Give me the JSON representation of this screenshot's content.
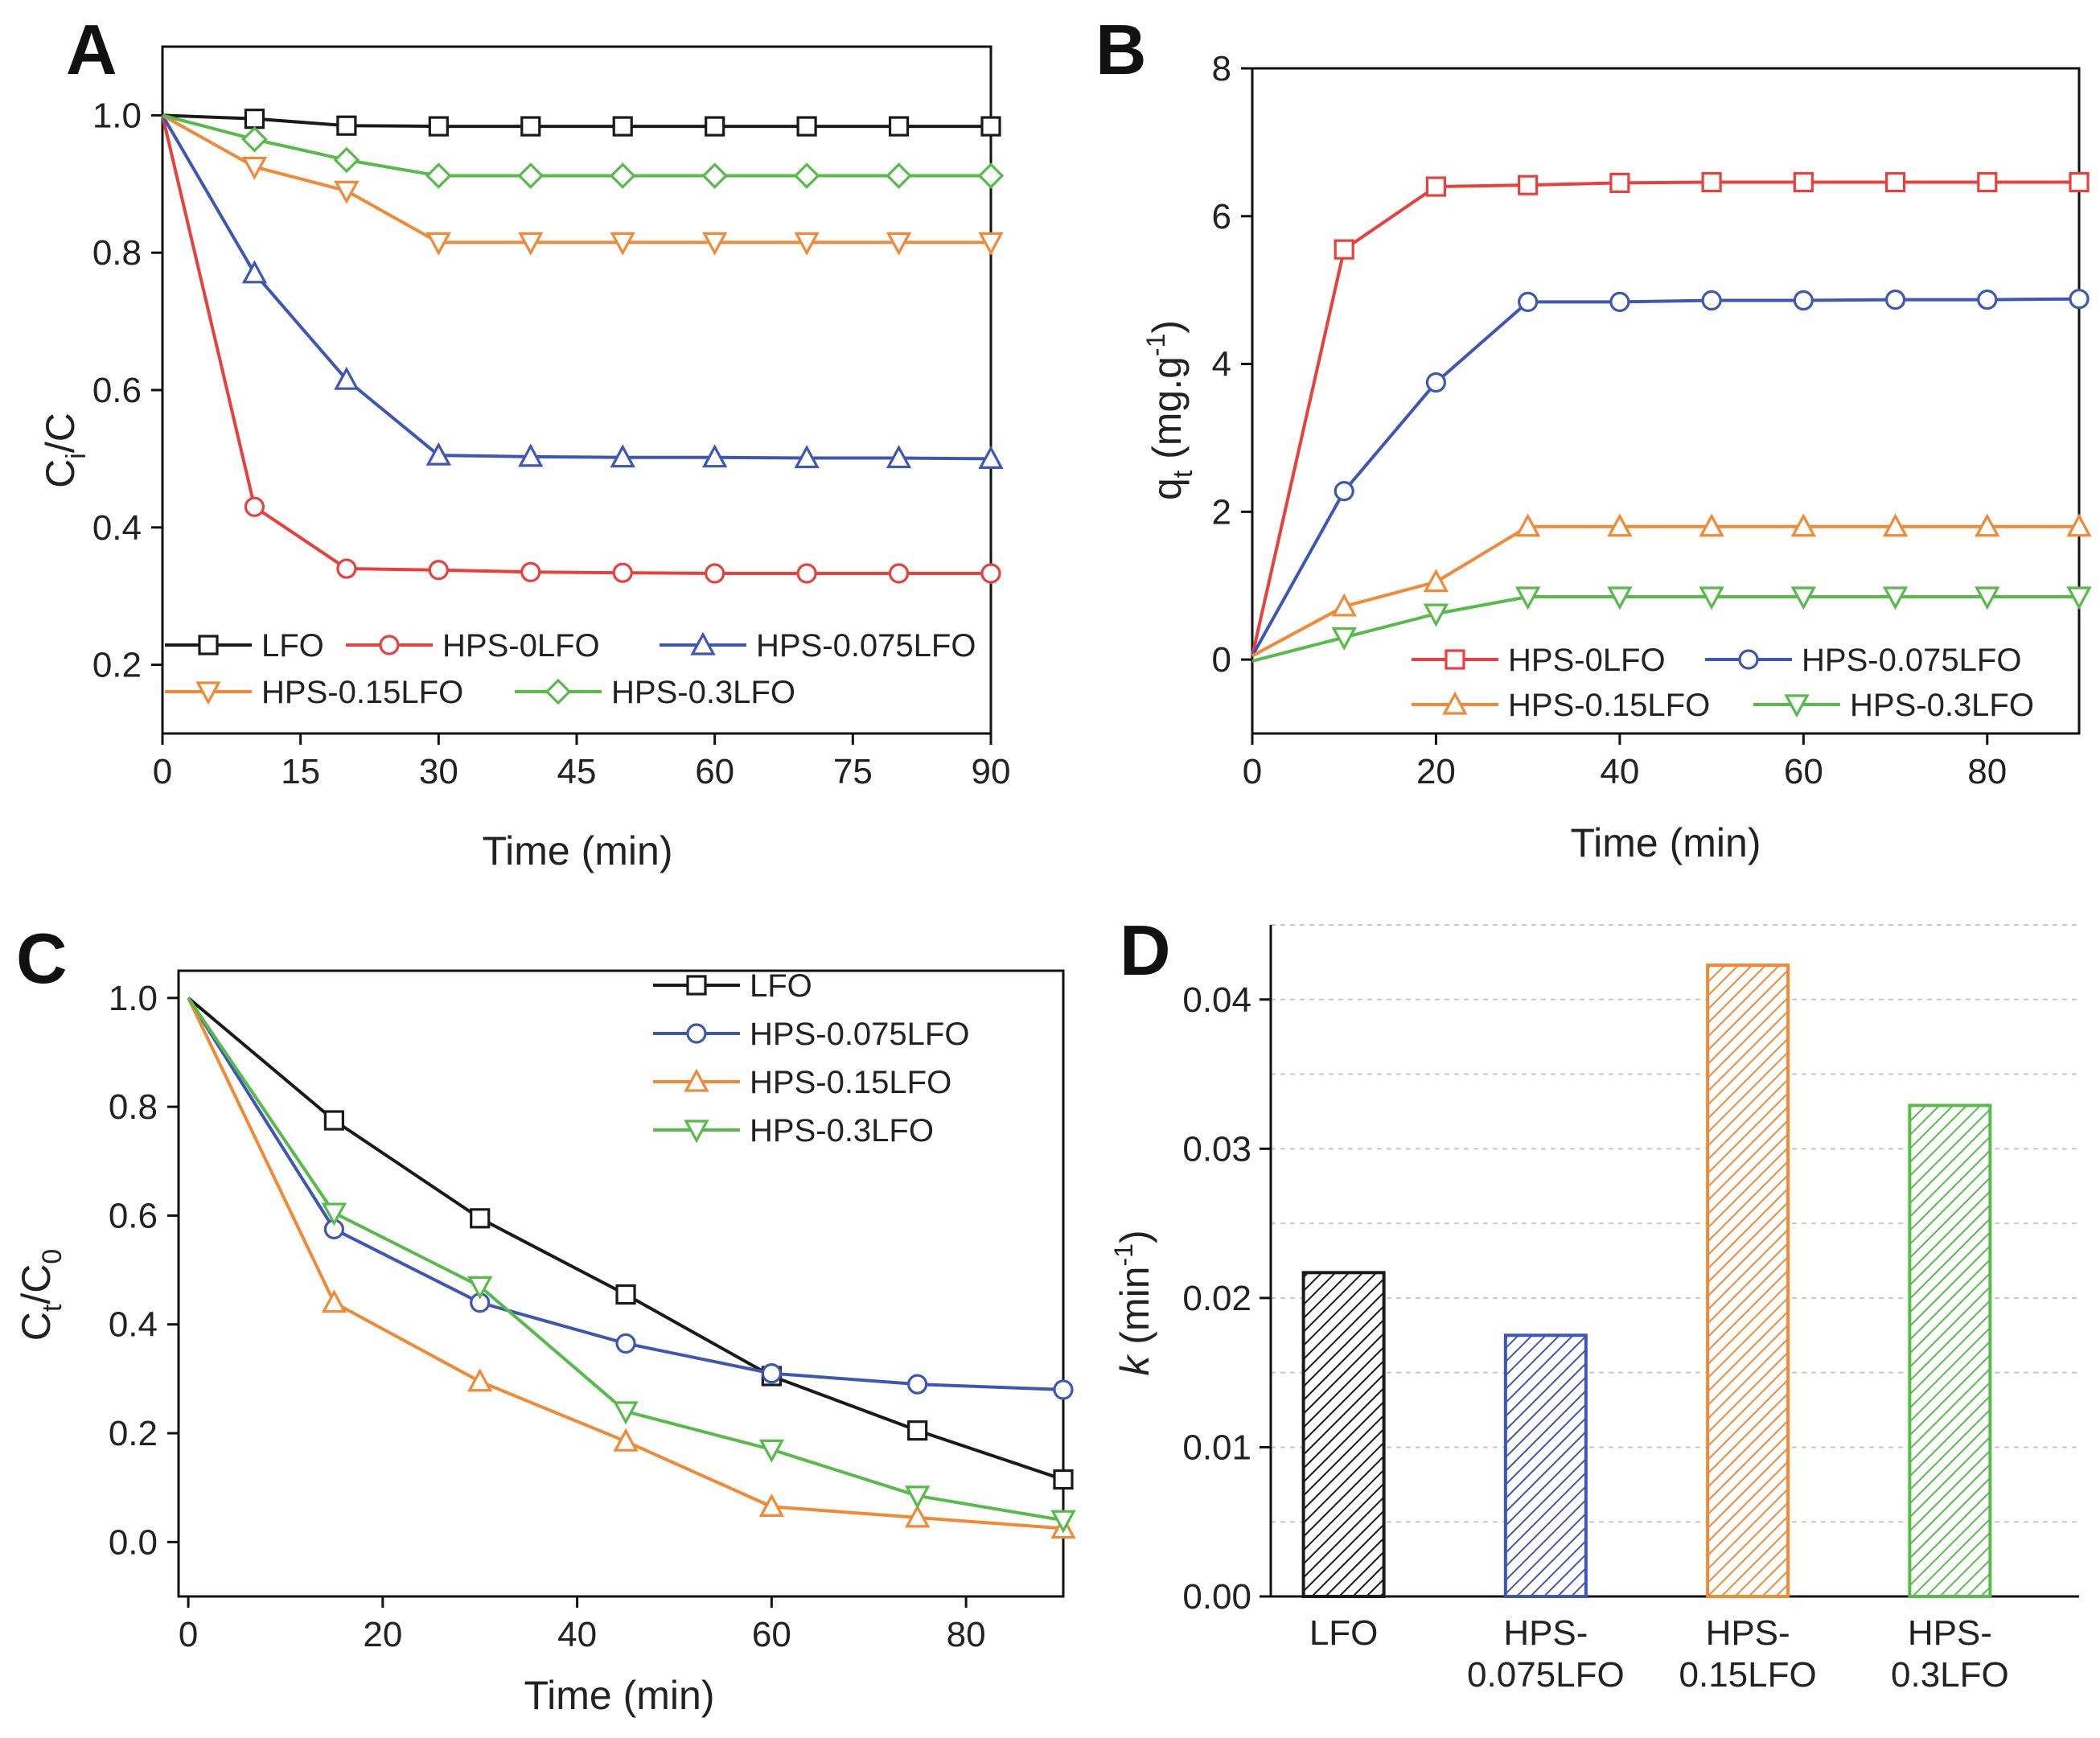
{
  "colors": {
    "LFO": "#1a1a1a",
    "HPS-0LFO": "#e8403d",
    "HPS-0.075LFO": "#3e57b5",
    "HPS-0.15LFO": "#f08a36",
    "HPS-0.3LFO": "#57bb4a"
  },
  "chart_data": [
    {
      "panel": "A",
      "type": "line",
      "xlabel": "Time (min)",
      "ylabel": "Ci/C",
      "xlim": [
        0,
        90
      ],
      "ylim": [
        0.1,
        1.1
      ],
      "xticks": [
        0,
        15,
        30,
        45,
        60,
        75,
        90
      ],
      "yticks": [
        0.2,
        0.4,
        0.6,
        0.8,
        1.0
      ],
      "xtick_labels": [
        "0",
        "15",
        "30",
        "45",
        "60",
        "75",
        "90"
      ],
      "ytick_labels": [
        "0.2",
        "0.4",
        "0.6",
        "0.8",
        "1.0"
      ],
      "x": [
        0,
        10,
        20,
        30,
        40,
        50,
        60,
        70,
        80,
        90
      ],
      "series": [
        {
          "name": "LFO",
          "marker": "square",
          "values": [
            1.0,
            0.995,
            0.985,
            0.984,
            0.984,
            0.984,
            0.984,
            0.984,
            0.984,
            0.984
          ]
        },
        {
          "name": "HPS-0LFO",
          "marker": "circle",
          "values": [
            1.0,
            0.43,
            0.34,
            0.338,
            0.335,
            0.334,
            0.333,
            0.333,
            0.333,
            0.333
          ]
        },
        {
          "name": "HPS-0.075LFO",
          "marker": "triangle-up",
          "values": [
            1.0,
            0.77,
            0.615,
            0.505,
            0.503,
            0.502,
            0.502,
            0.501,
            0.501,
            0.5
          ]
        },
        {
          "name": "HPS-0.15LFO",
          "marker": "triangle-down",
          "values": [
            1.0,
            0.925,
            0.89,
            0.815,
            0.815,
            0.815,
            0.815,
            0.815,
            0.815,
            0.815
          ]
        },
        {
          "name": "HPS-0.3LFO",
          "marker": "diamond",
          "values": [
            1.0,
            0.965,
            0.935,
            0.912,
            0.912,
            0.912,
            0.912,
            0.912,
            0.912,
            0.912
          ]
        }
      ],
      "legend_position": "bottom-left"
    },
    {
      "panel": "B",
      "type": "line",
      "xlabel": "Time (min)",
      "ylabel": "qt (mg.g-1)",
      "xlim": [
        0,
        90
      ],
      "ylim": [
        -1,
        8
      ],
      "xticks": [
        0,
        20,
        40,
        60,
        80
      ],
      "yticks": [
        0,
        2,
        4,
        6,
        8
      ],
      "xtick_labels": [
        "0",
        "20",
        "40",
        "60",
        "80"
      ],
      "ytick_labels": [
        "0",
        "2",
        "4",
        "6",
        "8"
      ],
      "x": [
        0,
        10,
        20,
        30,
        40,
        50,
        60,
        70,
        80,
        90
      ],
      "series": [
        {
          "name": "HPS-0LFO",
          "marker": "square",
          "values": [
            0.05,
            5.55,
            6.4,
            6.42,
            6.45,
            6.46,
            6.46,
            6.46,
            6.46,
            6.46
          ]
        },
        {
          "name": "HPS-0.075LFO",
          "marker": "circle",
          "values": [
            0.05,
            2.28,
            3.75,
            4.84,
            4.84,
            4.86,
            4.86,
            4.87,
            4.87,
            4.88
          ]
        },
        {
          "name": "HPS-0.15LFO",
          "marker": "triangle-up",
          "values": [
            0.05,
            0.72,
            1.05,
            1.8,
            1.8,
            1.8,
            1.8,
            1.8,
            1.8,
            1.8
          ]
        },
        {
          "name": "HPS-0.3LFO",
          "marker": "triangle-down",
          "values": [
            -0.02,
            0.3,
            0.62,
            0.85,
            0.85,
            0.85,
            0.85,
            0.85,
            0.85,
            0.85
          ]
        }
      ],
      "legend_position": "bottom-right"
    },
    {
      "panel": "C",
      "type": "line",
      "xlabel": "Time (min)",
      "ylabel": "Ct/C0",
      "xlim": [
        -1,
        90
      ],
      "ylim": [
        -0.1,
        1.05
      ],
      "xticks": [
        0,
        20,
        40,
        60,
        80
      ],
      "yticks": [
        0.0,
        0.2,
        0.4,
        0.6,
        0.8,
        1.0
      ],
      "xtick_labels": [
        "0",
        "20",
        "40",
        "60",
        "80"
      ],
      "ytick_labels": [
        "0.0",
        "0.2",
        "0.4",
        "0.6",
        "0.8",
        "1.0"
      ],
      "x": [
        0,
        15,
        30,
        45,
        60,
        75,
        90
      ],
      "series": [
        {
          "name": "LFO",
          "marker": "square",
          "values": [
            1.0,
            0.775,
            0.595,
            0.455,
            0.305,
            0.205,
            0.115
          ]
        },
        {
          "name": "HPS-0.075LFO",
          "marker": "circle",
          "values": [
            1.0,
            0.575,
            0.44,
            0.365,
            0.31,
            0.29,
            0.28
          ]
        },
        {
          "name": "HPS-0.15LFO",
          "marker": "triangle-up",
          "values": [
            1.0,
            0.44,
            0.295,
            0.185,
            0.065,
            0.045,
            0.025
          ]
        },
        {
          "name": "HPS-0.3LFO",
          "marker": "triangle-down",
          "values": [
            1.0,
            0.605,
            0.47,
            0.24,
            0.17,
            0.085,
            0.04
          ]
        }
      ],
      "legend_position": "top-right"
    },
    {
      "panel": "D",
      "type": "bar",
      "ylabel": "k (min-1)",
      "ylim": [
        0,
        0.045
      ],
      "yticks": [
        0.0,
        0.01,
        0.02,
        0.03,
        0.04
      ],
      "ytick_labels": [
        "0.00",
        "0.01",
        "0.02",
        "0.03",
        "0.04"
      ],
      "categories": [
        [
          "LFO"
        ],
        [
          "HPS-",
          "0.075LFO"
        ],
        [
          "HPS-",
          "0.15LFO"
        ],
        [
          "HPS-",
          "0.3LFO"
        ]
      ],
      "category_keys": [
        "LFO",
        "HPS-0.075LFO",
        "HPS-0.15LFO",
        "HPS-0.3LFO"
      ],
      "values": [
        0.0217,
        0.0175,
        0.0423,
        0.0329
      ],
      "grid": true
    }
  ],
  "labels": {
    "A": {
      "letter": "A",
      "ylabel_main": "C",
      "ylabel_sub": "i",
      "ylabel_tail": "/C",
      "xlabel": "Time (min)"
    },
    "B": {
      "letter": "B",
      "ylabel_main": "q",
      "ylabel_sub": "t",
      "ylabel_unit": " (mg.g",
      "ylabel_sup": "-1",
      "ylabel_close": ")",
      "xlabel": "Time (min)"
    },
    "C": {
      "letter": "C",
      "ylabel_main": "C",
      "ylabel_sub": "t",
      "ylabel_tail": "/C",
      "ylabel_sub2": "0",
      "xlabel": "Time (min)"
    },
    "D": {
      "letter": "D",
      "ylabel_main": "k",
      "ylabel_unit": " (min",
      "ylabel_sup": "-1",
      "ylabel_close": ")"
    }
  }
}
